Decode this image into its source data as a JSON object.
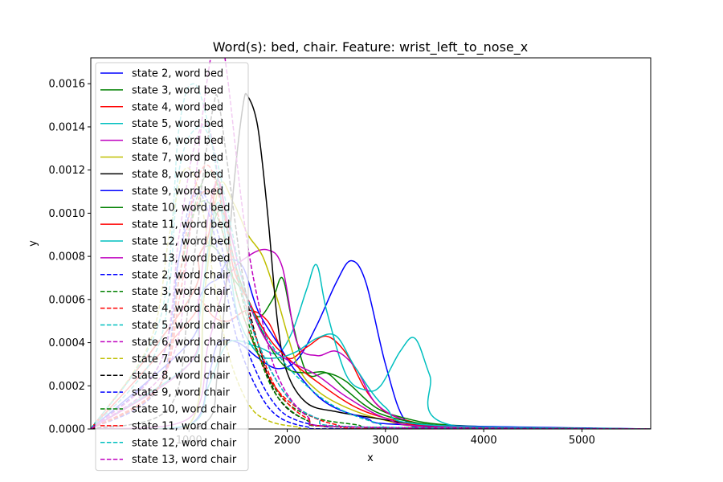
{
  "chart_data": {
    "type": "line",
    "title": "Word(s): bed, chair. Feature: wrist_left_to_nose_x",
    "xlabel": "x",
    "ylabel": "y",
    "xlim": [
      0,
      5700
    ],
    "ylim": [
      0,
      0.00172
    ],
    "x_ticks": [
      1000,
      2000,
      3000,
      4000,
      5000
    ],
    "x_tick_labels": [
      "1000",
      "2000",
      "3000",
      "4000",
      "5000"
    ],
    "y_ticks": [
      0,
      0.0002,
      0.0004,
      0.0006,
      0.0008,
      0.001,
      0.0012,
      0.0014,
      0.0016
    ],
    "y_tick_labels": [
      "0.0000",
      "0.0002",
      "0.0004",
      "0.0006",
      "0.0008",
      "0.0010",
      "0.0012",
      "0.0014",
      "0.0016"
    ],
    "grid": false,
    "legend_position": "upper-left",
    "series": [
      {
        "name": "state 2, word bed",
        "color": "#0000ff",
        "style": "solid",
        "x": [
          0,
          1000,
          1200,
          1300,
          1500,
          1700,
          1900,
          2100,
          2300,
          2500,
          2650,
          2800,
          3000,
          3200,
          3500,
          4000,
          5700
        ],
        "y": [
          0,
          2e-05,
          0.00025,
          0.0004,
          0.0004,
          0.00033,
          0.00028,
          0.00032,
          0.00048,
          0.00068,
          0.00078,
          0.00068,
          0.0003,
          4e-05,
          5e-06,
          0,
          0
        ]
      },
      {
        "name": "state 3, word bed",
        "color": "#008000",
        "style": "solid",
        "x": [
          0,
          1000,
          1150,
          1250,
          1350,
          1450,
          1550,
          1700,
          1850,
          1950,
          2050,
          2200,
          2400,
          2600,
          2900,
          3200,
          3600,
          4500,
          5700
        ],
        "y": [
          0,
          2e-05,
          0.0006,
          0.00095,
          0.001,
          0.0008,
          0.00065,
          0.00052,
          0.0006,
          0.0007,
          0.0005,
          0.00026,
          0.00026,
          0.00022,
          0.0001,
          5e-05,
          2e-05,
          5e-06,
          0
        ]
      },
      {
        "name": "state 4, word bed",
        "color": "#ff0000",
        "style": "solid",
        "x": [
          0,
          1000,
          1100,
          1250,
          1400,
          1600,
          1800,
          2000,
          2200,
          2400,
          2600,
          2800,
          3000,
          3300,
          3700,
          5700
        ],
        "y": [
          0,
          0.0005,
          0.0006,
          0.00052,
          0.0005,
          0.00055,
          0.0005,
          0.00033,
          0.00038,
          0.00043,
          0.00035,
          0.00018,
          8e-05,
          3e-05,
          5e-06,
          0
        ]
      },
      {
        "name": "state 5, word bed",
        "color": "#00bfbf",
        "style": "solid",
        "x": [
          0,
          1000,
          1200,
          1400,
          1700,
          1900,
          2050,
          2200,
          2300,
          2400,
          2600,
          2800,
          2950,
          3150,
          3300,
          3450,
          3650,
          5700
        ],
        "y": [
          0,
          2e-05,
          0.0002,
          0.0004,
          0.00038,
          0.00035,
          0.00045,
          0.00065,
          0.00076,
          0.00055,
          0.00025,
          0.00018,
          0.0002,
          0.00036,
          0.00042,
          0.00025,
          2e-05,
          0
        ]
      },
      {
        "name": "state 6, word bed",
        "color": "#bf00bf",
        "style": "solid",
        "x": [
          0,
          1000,
          1200,
          1400,
          1600,
          1800,
          1950,
          2100,
          2300,
          2500,
          2700,
          2900,
          3200,
          3600,
          5700
        ],
        "y": [
          0,
          5e-05,
          0.0004,
          0.0007,
          0.0008,
          0.00083,
          0.00075,
          0.0004,
          0.00034,
          0.00036,
          0.00028,
          0.00012,
          4e-05,
          1e-05,
          0
        ]
      },
      {
        "name": "state 7, word bed",
        "color": "#bfbf00",
        "style": "solid",
        "x": [
          0,
          1000,
          1150,
          1300,
          1450,
          1600,
          1750,
          1900,
          2100,
          2300,
          2600,
          3000,
          3500,
          5700
        ],
        "y": [
          0,
          2e-05,
          0.0006,
          0.00112,
          0.00105,
          0.0009,
          0.0008,
          0.0006,
          0.0003,
          0.00018,
          0.0001,
          4e-05,
          1e-05,
          0
        ]
      },
      {
        "name": "state 8, word bed",
        "color": "#000000",
        "style": "solid",
        "x": [
          0,
          1100,
          1300,
          1450,
          1550,
          1600,
          1700,
          1800,
          1900,
          2000,
          2200,
          2500,
          2900,
          3300,
          3700,
          5700
        ],
        "y": [
          0,
          1e-05,
          0.0003,
          0.0011,
          0.0015,
          0.00154,
          0.0014,
          0.001,
          0.0005,
          0.00026,
          0.00012,
          8e-05,
          5e-05,
          2e-05,
          5e-06,
          0
        ]
      },
      {
        "name": "state 9, word bed",
        "color": "#0000ff",
        "style": "solid",
        "x": [
          0,
          1000,
          1100,
          1200,
          1300,
          1400,
          1550,
          1700,
          1900,
          2100,
          2400,
          2800,
          3200,
          5700
        ],
        "y": [
          0,
          0.0004,
          0.0006,
          0.00067,
          0.0007,
          0.00078,
          0.00075,
          0.00055,
          0.0004,
          0.00026,
          0.00012,
          5e-05,
          2e-05,
          0
        ]
      },
      {
        "name": "state 10, word bed",
        "color": "#008000",
        "style": "solid",
        "x": [
          0,
          1000,
          1100,
          1200,
          1300,
          1450,
          1600,
          1800,
          2000,
          2200,
          2400,
          2600,
          2900,
          3300,
          3800,
          4500,
          5700
        ],
        "y": [
          0,
          0.0006,
          0.0008,
          0.00085,
          0.00082,
          0.0007,
          0.0006,
          0.0004,
          0.00028,
          0.00026,
          0.00026,
          0.00018,
          8e-05,
          3e-05,
          1e-05,
          5e-06,
          0
        ]
      },
      {
        "name": "state 11, word bed",
        "color": "#ff0000",
        "style": "solid",
        "x": [
          0,
          1000,
          1100,
          1200,
          1280,
          1350,
          1450,
          1600,
          1800,
          2000,
          2300,
          2700,
          3100,
          3600,
          5700
        ],
        "y": [
          0,
          0.0006,
          0.0008,
          0.0009,
          0.00115,
          0.00105,
          0.00075,
          0.0006,
          0.00043,
          0.00033,
          0.00022,
          0.0001,
          4e-05,
          1e-05,
          0
        ]
      },
      {
        "name": "state 12, word bed",
        "color": "#00bfbf",
        "style": "solid",
        "x": [
          0,
          1000,
          1100,
          1200,
          1300,
          1400,
          1500,
          1700,
          1900,
          2100,
          2300,
          2500,
          2700,
          3000,
          3400,
          5700
        ],
        "y": [
          0,
          0.0003,
          0.0005,
          0.00085,
          0.00105,
          0.0008,
          0.00052,
          0.00035,
          0.00033,
          0.00036,
          0.00042,
          0.00043,
          0.00028,
          0.0001,
          2e-05,
          0
        ]
      },
      {
        "name": "state 13, word bed",
        "color": "#bf00bf",
        "style": "solid",
        "x": [
          0,
          1000,
          1100,
          1200,
          1300,
          1400,
          1600,
          1800,
          2000,
          2300,
          2600,
          3000,
          3500,
          5700
        ],
        "y": [
          0,
          0.0003,
          0.0006,
          0.001,
          0.00115,
          0.00095,
          0.0006,
          0.0004,
          0.00032,
          0.00025,
          0.00015,
          5e-05,
          1e-05,
          0
        ]
      },
      {
        "name": "state 2, word chair",
        "color": "#0000ff",
        "style": "dashed",
        "x": [
          0,
          700,
          900,
          1100,
          1300,
          1500,
          1700,
          1900,
          2100,
          2400,
          2800,
          5700
        ],
        "y": [
          0,
          0.0003,
          0.0008,
          0.0011,
          0.0009,
          0.0005,
          0.00025,
          0.0001,
          4e-05,
          1e-05,
          0,
          0
        ]
      },
      {
        "name": "state 3, word chair",
        "color": "#008000",
        "style": "dashed",
        "x": [
          0,
          700,
          900,
          1100,
          1250,
          1400,
          1600,
          1800,
          2000,
          2300,
          2700,
          3100,
          5700
        ],
        "y": [
          0,
          0.0002,
          0.0007,
          0.0011,
          0.00118,
          0.0009,
          0.0005,
          0.00025,
          0.00012,
          5e-05,
          2e-05,
          0,
          0
        ]
      },
      {
        "name": "state 4, word chair",
        "color": "#ff0000",
        "style": "dashed",
        "x": [
          0,
          700,
          900,
          1050,
          1200,
          1350,
          1500,
          1700,
          1900,
          2200,
          2500,
          2900,
          5700
        ],
        "y": [
          0,
          0.0002,
          0.0006,
          0.001,
          0.0011,
          0.0009,
          0.0006,
          0.00035,
          0.00018,
          7e-05,
          2e-05,
          0,
          0
        ]
      },
      {
        "name": "state 5, word chair",
        "color": "#00bfbf",
        "style": "dashed",
        "x": [
          0,
          700,
          900,
          1100,
          1250,
          1400,
          1600,
          1900,
          2200,
          2500,
          2900,
          3300,
          5700
        ],
        "y": [
          0,
          0.0004,
          0.0012,
          0.0014,
          0.0013,
          0.001,
          0.0006,
          0.00035,
          0.0002,
          0.0001,
          3e-05,
          0,
          0
        ]
      },
      {
        "name": "state 6, word chair",
        "color": "#bf00bf",
        "style": "dashed",
        "x": [
          0,
          700,
          900,
          1050,
          1200,
          1350,
          1500,
          1700,
          2000,
          2300,
          2700,
          5700
        ],
        "y": [
          0,
          0.0003,
          0.0009,
          0.0013,
          0.0014,
          0.001,
          0.0007,
          0.0004,
          0.00015,
          5e-05,
          1e-05,
          0
        ]
      },
      {
        "name": "state 7, word chair",
        "color": "#bfbf00",
        "style": "dashed",
        "x": [
          0,
          600,
          800,
          950,
          1100,
          1250,
          1400,
          1600,
          1800,
          2100,
          2500,
          5700
        ],
        "y": [
          0,
          0.0004,
          0.0009,
          0.0012,
          0.0011,
          0.0007,
          0.00035,
          0.00012,
          4e-05,
          1e-05,
          0,
          0
        ]
      },
      {
        "name": "state 8, word chair",
        "color": "#000000",
        "style": "dashed",
        "x": [
          0,
          800,
          1000,
          1150,
          1250,
          1300,
          1400,
          1550,
          1700,
          1900,
          2200,
          2600,
          5700
        ],
        "y": [
          0,
          0.0001,
          0.0006,
          0.0012,
          0.0015,
          0.00152,
          0.0012,
          0.0007,
          0.0004,
          0.00015,
          4e-05,
          1e-05,
          0
        ]
      },
      {
        "name": "state 9, word chair",
        "color": "#0000ff",
        "style": "dashed",
        "x": [
          0,
          700,
          900,
          1050,
          1200,
          1350,
          1500,
          1700,
          1900,
          2200,
          2600,
          5700
        ],
        "y": [
          0,
          0.0002,
          0.0008,
          0.0011,
          0.001,
          0.0007,
          0.0004,
          0.00018,
          6e-05,
          1e-05,
          0,
          0
        ]
      },
      {
        "name": "state 10, word chair",
        "color": "#008000",
        "style": "dashed",
        "x": [
          0,
          700,
          900,
          1050,
          1200,
          1350,
          1500,
          1700,
          1900,
          2200,
          2600,
          5700
        ],
        "y": [
          0,
          0.0002,
          0.0007,
          0.001,
          0.00105,
          0.0009,
          0.0006,
          0.00035,
          0.00015,
          4e-05,
          1e-05,
          0
        ]
      },
      {
        "name": "state 11, word chair",
        "color": "#ff0000",
        "style": "dashed",
        "x": [
          0,
          700,
          900,
          1050,
          1200,
          1350,
          1500,
          1700,
          1900,
          2200,
          2600,
          5700
        ],
        "y": [
          0,
          0.0002,
          0.0007,
          0.0011,
          0.00122,
          0.001,
          0.0007,
          0.0004,
          0.00018,
          5e-05,
          1e-05,
          0
        ]
      },
      {
        "name": "state 12, word chair",
        "color": "#00bfbf",
        "style": "dashed",
        "x": [
          0,
          700,
          900,
          1050,
          1200,
          1350,
          1500,
          1700,
          2000,
          2300,
          2700,
          5700
        ],
        "y": [
          0,
          0.0005,
          0.0014,
          0.0016,
          0.0014,
          0.001,
          0.0007,
          0.0004,
          0.00015,
          5e-05,
          1e-05,
          0
        ]
      },
      {
        "name": "state 13, word chair",
        "color": "#bf00bf",
        "style": "dashed",
        "x": [
          0,
          800,
          1000,
          1150,
          1250,
          1300,
          1400,
          1550,
          1700,
          1900,
          2200,
          2600,
          5700
        ],
        "y": [
          0,
          0.0003,
          0.0009,
          0.0015,
          0.0018,
          0.0019,
          0.0016,
          0.001,
          0.0006,
          0.00025,
          6e-05,
          1e-05,
          0
        ]
      }
    ]
  }
}
